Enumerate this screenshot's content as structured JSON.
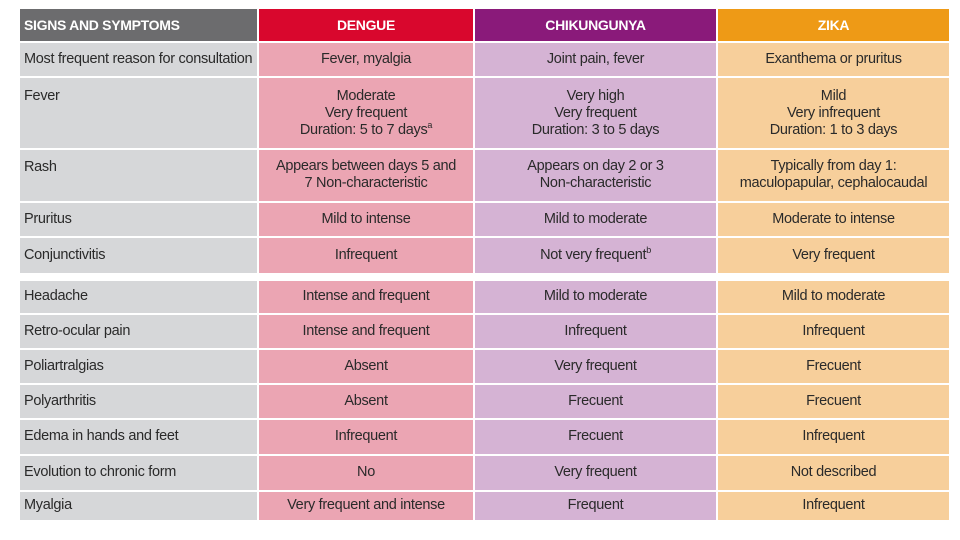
{
  "header": {
    "signs": "SIGNS AND SYMPTOMS",
    "dengue": "DENGUE",
    "chikungunya": "CHIKUNGUNYA",
    "zika": "ZIKA"
  },
  "colors": {
    "header_signs": "#6c6c6e",
    "header_dengue": "#d9072d",
    "header_chikungunya": "#8a1a7a",
    "header_zika": "#ee9a16",
    "cell_signs": "#d6d7d9",
    "cell_dengue": "#eba5b3",
    "cell_chikungunya": "#d5b3d4",
    "cell_zika": "#f7cf9b"
  },
  "rows": {
    "consultation": {
      "label": "Most frequent reason for consultation",
      "dengue": "Fever, myalgia",
      "chikungunya": "Joint pain, fever",
      "zika": "Exanthema or pruritus"
    },
    "fever": {
      "label": "Fever",
      "dengue_1": "Moderate",
      "dengue_2": "Very frequent",
      "dengue_3": "Duration: 5 to 7 days",
      "dengue_sup": "a",
      "chikungunya_1": "Very high",
      "chikungunya_2": "Very frequent",
      "chikungunya_3": "Duration: 3 to 5 days",
      "zika_1": "Mild",
      "zika_2": "Very infrequent",
      "zika_3": "Duration: 1 to 3 days"
    },
    "rash": {
      "label": "Rash",
      "dengue_1": "Appears between days 5 and",
      "dengue_2": "7 Non-characteristic",
      "chikungunya_1": "Appears on day 2 or 3",
      "chikungunya_2": "Non-characteristic",
      "zika_1": "Typically from day 1:",
      "zika_2": "maculopapular, cephalocaudal"
    },
    "pruritus": {
      "label": "Pruritus",
      "dengue": "Mild to intense",
      "chikungunya": "Mild to moderate",
      "zika": "Moderate to intense"
    },
    "conjunctivitis": {
      "label": "Conjunctivitis",
      "dengue": "Infrequent",
      "chikungunya": "Not very frequent",
      "chikungunya_sup": "b",
      "zika": "Very frequent"
    },
    "headache": {
      "label": "Headache",
      "dengue": "Intense and frequent",
      "chikungunya": "Mild to moderate",
      "zika": "Mild to moderate"
    },
    "retro_ocular": {
      "label": "Retro-ocular pain",
      "dengue": "Intense and frequent",
      "chikungunya": "Infrequent",
      "zika": "Infrequent"
    },
    "polyarthralgias": {
      "label": "Poliartralgias",
      "dengue": "Absent",
      "chikungunya": "Very frequent",
      "zika": "Frecuent"
    },
    "polyarthritis": {
      "label": "Polyarthritis",
      "dengue": "Absent",
      "chikungunya": "Frecuent",
      "zika": "Frecuent"
    },
    "edema": {
      "label": "Edema in hands and feet",
      "dengue": "Infrequent",
      "chikungunya": "Frecuent",
      "zika": "Infrequent"
    },
    "chronic": {
      "label": "Evolution to chronic form",
      "dengue": "No",
      "chikungunya": "Very frequent",
      "zika": "Not described"
    },
    "myalgia": {
      "label": "Myalgia",
      "dengue": "Very frequent and intense",
      "chikungunya": "Frequent",
      "zika": "Infrequent"
    }
  }
}
